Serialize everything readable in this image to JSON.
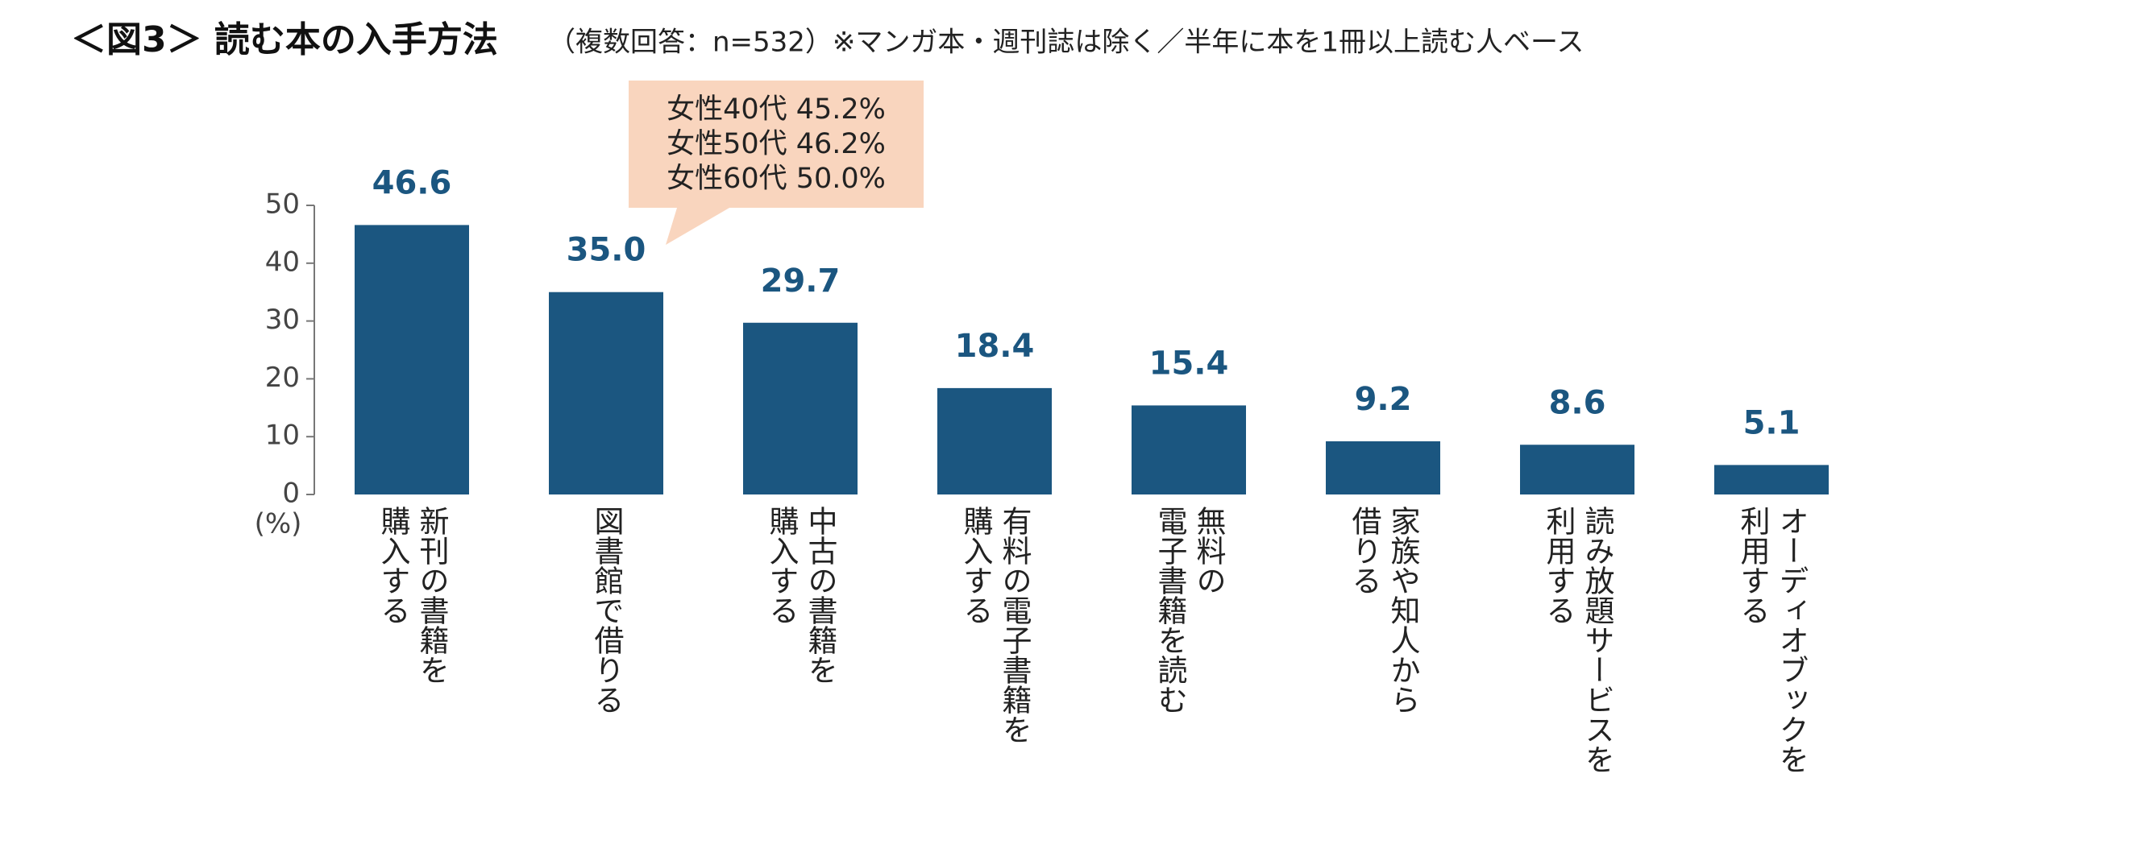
{
  "chart_data": {
    "type": "bar",
    "title": "＜図3＞ 読む本の入手方法",
    "subtitle": "（複数回答：n=532）※マンガ本・週刊誌は除く／半年に本を1冊以上読む人ベース",
    "y_label": "(%)",
    "categories": [
      "新刊の書籍を\n購入する",
      "図書館で借りる",
      "中古の書籍を\n購入する",
      "有料の電子書籍を\n購入する",
      "無料の\n電子書籍を読む",
      "家族や知人から\n借りる",
      "読み放題サービスを\n利用する",
      "オーディオブックを\n利用する"
    ],
    "values": [
      46.6,
      35.0,
      29.7,
      18.4,
      15.4,
      9.2,
      8.6,
      5.1
    ],
    "value_labels": [
      "46.6",
      "35.0",
      "29.7",
      "18.4",
      "15.4",
      "9.2",
      "8.6",
      "5.1"
    ],
    "color": "#1b5680",
    "ylim": [
      0,
      50
    ],
    "yticks": [
      0,
      10,
      20,
      30,
      40,
      50
    ],
    "annotation": [
      "女性40代 45.2%",
      "女性50代 46.2%",
      "女性60代 50.0%"
    ]
  }
}
